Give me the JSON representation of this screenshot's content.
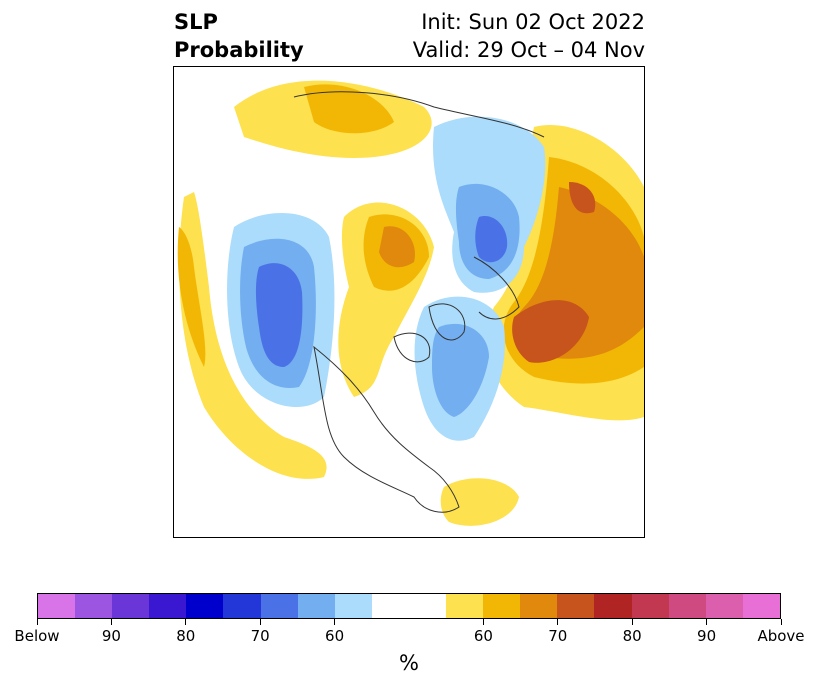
{
  "title": {
    "left_line1": "SLP",
    "left_line2": "Probability",
    "right_line1": "Init: Sun 02 Oct 2022",
    "right_line2": "Valid: 29 Oct – 04 Nov"
  },
  "map": {
    "projection": "polar-stereographic",
    "region": "northern-hemisphere",
    "field": "SLP probability"
  },
  "colorbar": {
    "unit": "%",
    "colors": [
      "#d874e8",
      "#9b55e0",
      "#6b36d8",
      "#3a18d2",
      "#0000cc",
      "#2336d8",
      "#4a72e6",
      "#72aef0",
      "#abdcfb",
      "#ffffff",
      "#fde14e",
      "#f2b705",
      "#e0890d",
      "#c6541c",
      "#b02424",
      "#c23850",
      "#cf4a80",
      "#dc5fad",
      "#e86fd6"
    ],
    "tick_labels": [
      "Below",
      "90",
      "80",
      "70",
      "60",
      "60",
      "70",
      "80",
      "90",
      "Above"
    ]
  }
}
